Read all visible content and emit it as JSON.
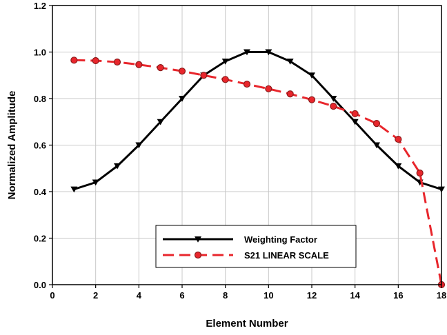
{
  "chart_data": {
    "type": "line",
    "xlabel": "Element Number",
    "ylabel": "Normalized Amplitude",
    "xlim": [
      0,
      18
    ],
    "ylim": [
      0.0,
      1.2
    ],
    "x_ticks": [
      0,
      2,
      4,
      6,
      8,
      10,
      12,
      14,
      16,
      18
    ],
    "y_ticks": [
      0.0,
      0.2,
      0.4,
      0.6,
      0.8,
      1.0,
      1.2
    ],
    "x_tick_labels": [
      "0",
      "2",
      "4",
      "6",
      "8",
      "10",
      "12",
      "14",
      "16",
      "18"
    ],
    "y_tick_labels": [
      "0.0",
      "0.2",
      "0.4",
      "0.6",
      "0.8",
      "1.0",
      "1.2"
    ],
    "grid": true,
    "legend_position": "bottom-center",
    "series": [
      {
        "name": "Weighting Factor",
        "color": "#000000",
        "line_style": "solid",
        "marker": "triangle-down",
        "x": [
          1,
          2,
          3,
          4,
          5,
          6,
          7,
          8,
          9,
          10,
          11,
          12,
          13,
          14,
          15,
          16,
          17,
          18
        ],
        "y": [
          0.41,
          0.44,
          0.51,
          0.6,
          0.7,
          0.8,
          0.9,
          0.96,
          1.0,
          1.0,
          0.96,
          0.9,
          0.8,
          0.7,
          0.6,
          0.51,
          0.44,
          0.41
        ]
      },
      {
        "name": "S21 LINEAR SCALE",
        "color": "#e8262c",
        "line_style": "dashed",
        "marker": "circle",
        "x": [
          1,
          2,
          3,
          4,
          5,
          6,
          7,
          8,
          9,
          10,
          11,
          12,
          13,
          14,
          15,
          16,
          17,
          18
        ],
        "y": [
          0.965,
          0.963,
          0.957,
          0.946,
          0.933,
          0.918,
          0.9,
          0.882,
          0.862,
          0.842,
          0.82,
          0.795,
          0.767,
          0.735,
          0.693,
          0.625,
          0.48,
          0.0
        ]
      }
    ]
  }
}
